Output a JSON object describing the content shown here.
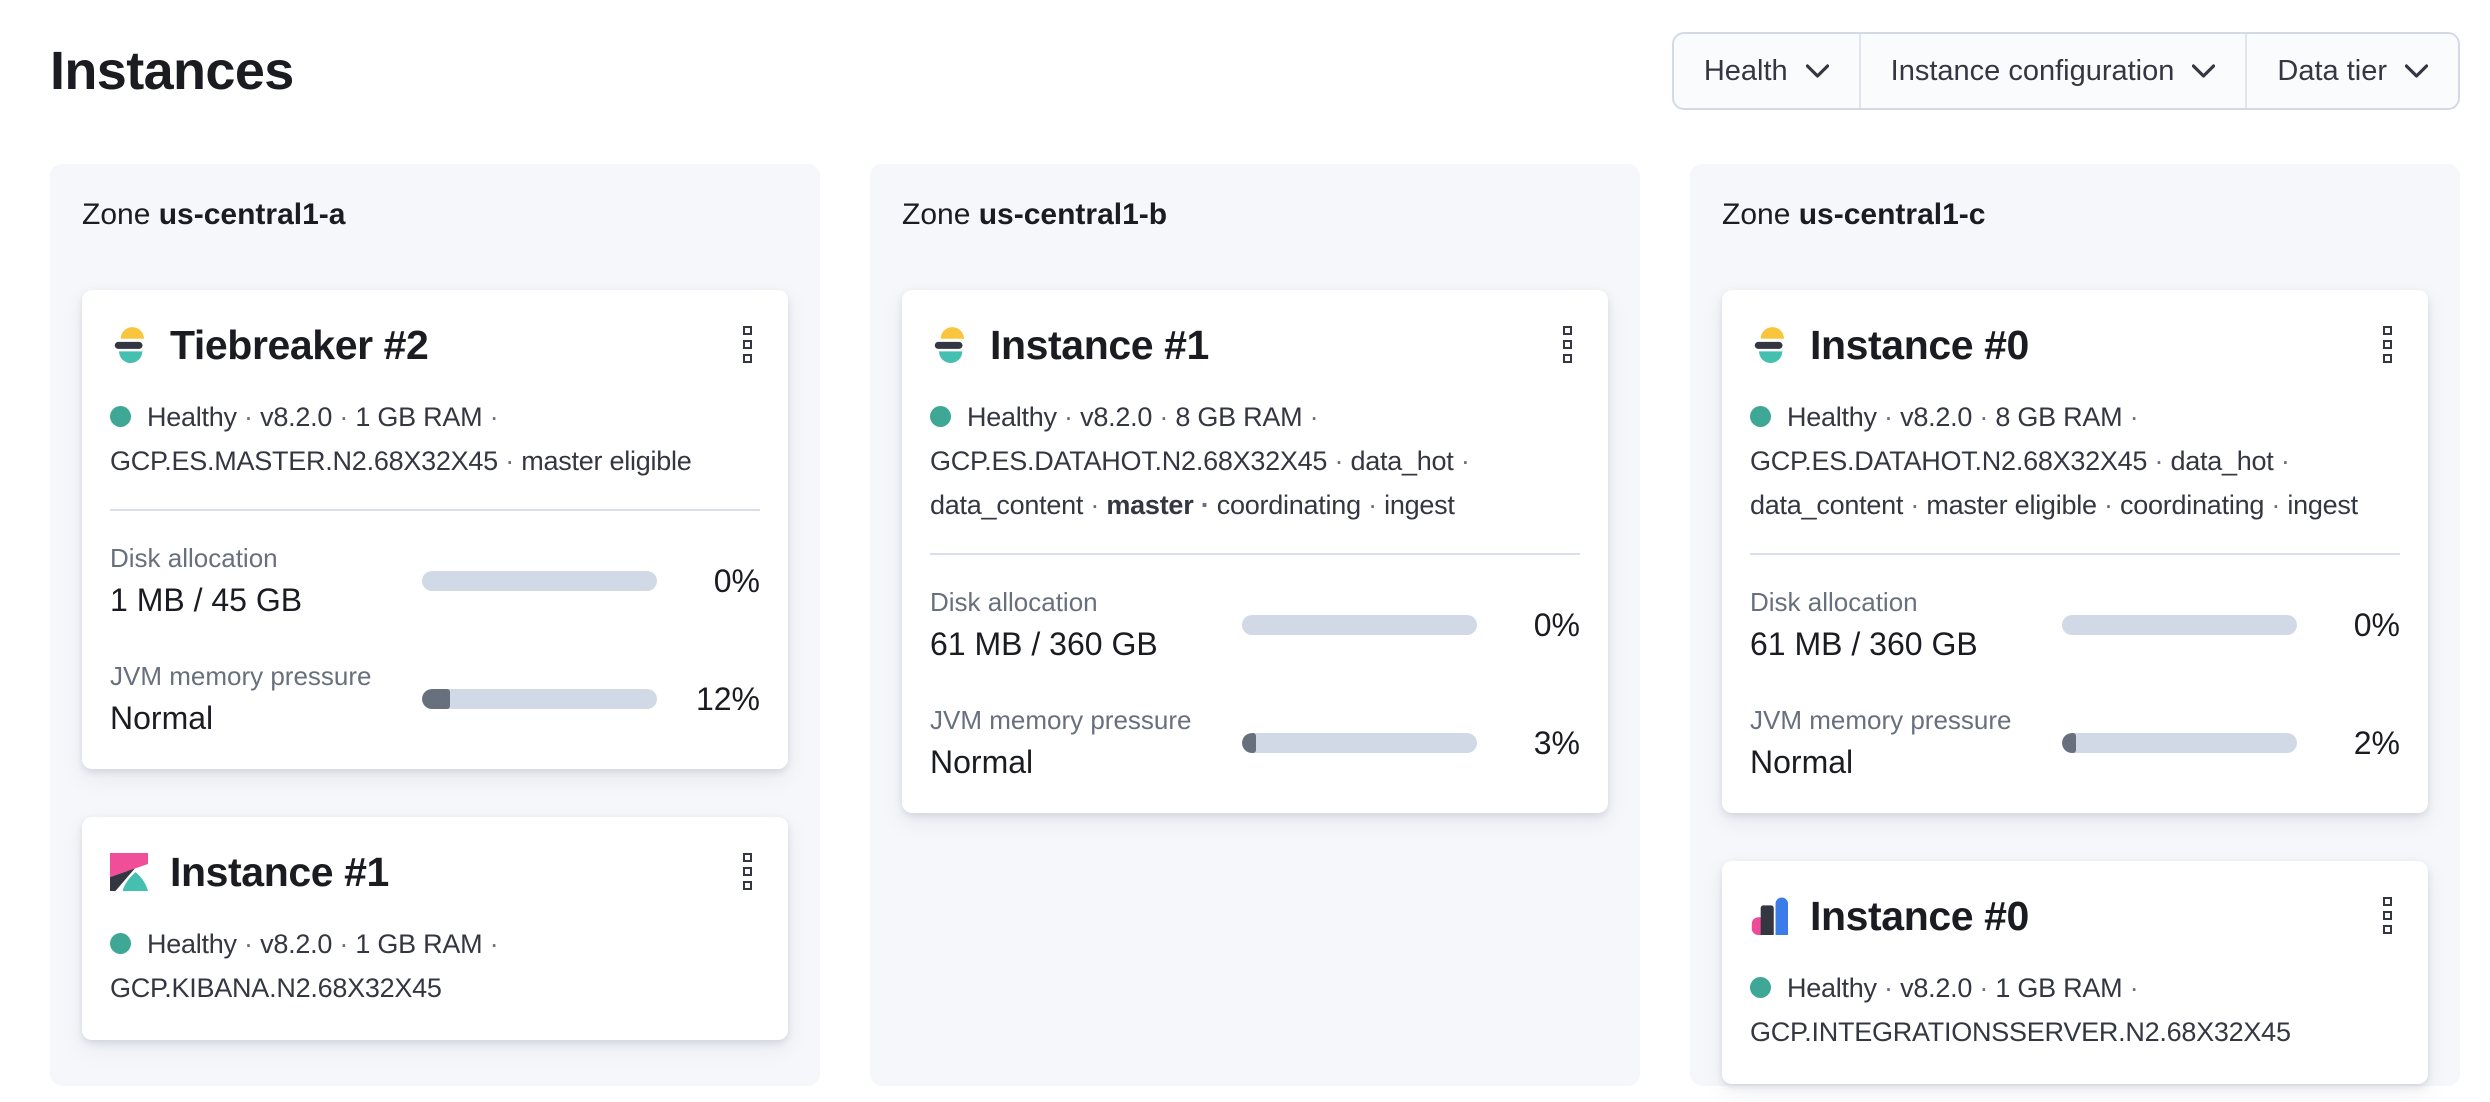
{
  "page": {
    "title": "Instances"
  },
  "filters": [
    {
      "label": "Health"
    },
    {
      "label": "Instance configuration"
    },
    {
      "label": "Data tier"
    }
  ],
  "zone_prefix": "Zone",
  "zones": [
    {
      "name": "us-central1-a",
      "instances": [
        {
          "icon": "elasticsearch",
          "title": "Tiebreaker #2",
          "tags": [
            {
              "text": "Healthy"
            },
            {
              "text": "v8.2.0"
            },
            {
              "text": "1 GB RAM"
            },
            {
              "text": "GCP.ES.MASTER.N2.68X32X45"
            },
            {
              "text": "master eligible"
            }
          ],
          "metrics": [
            {
              "label": "Disk allocation",
              "value": "1 MB / 45 GB",
              "percent": "0%",
              "fill": 0
            },
            {
              "label": "JVM memory pressure",
              "value": "Normal",
              "percent": "12%",
              "fill": 12
            }
          ]
        },
        {
          "icon": "kibana",
          "title": "Instance #1",
          "tags": [
            {
              "text": "Healthy"
            },
            {
              "text": "v8.2.0"
            },
            {
              "text": "1 GB RAM"
            },
            {
              "text": "GCP.KIBANA.N2.68X32X45"
            }
          ],
          "metrics": []
        }
      ]
    },
    {
      "name": "us-central1-b",
      "instances": [
        {
          "icon": "elasticsearch",
          "title": "Instance #1",
          "tags": [
            {
              "text": "Healthy"
            },
            {
              "text": "v8.2.0"
            },
            {
              "text": "8 GB RAM"
            },
            {
              "text": "GCP.ES.DATAHOT.N2.68X32X45"
            },
            {
              "text": "data_hot"
            },
            {
              "text": "data_content"
            },
            {
              "text": "master",
              "bold": true
            },
            {
              "text": "coordinating"
            },
            {
              "text": "ingest"
            }
          ],
          "metrics": [
            {
              "label": "Disk allocation",
              "value": "61 MB / 360 GB",
              "percent": "0%",
              "fill": 0
            },
            {
              "label": "JVM memory pressure",
              "value": "Normal",
              "percent": "3%",
              "fill": 3
            }
          ]
        }
      ]
    },
    {
      "name": "us-central1-c",
      "instances": [
        {
          "icon": "elasticsearch",
          "title": "Instance #0",
          "tags": [
            {
              "text": "Healthy"
            },
            {
              "text": "v8.2.0"
            },
            {
              "text": "8 GB RAM"
            },
            {
              "text": "GCP.ES.DATAHOT.N2.68X32X45"
            },
            {
              "text": "data_hot"
            },
            {
              "text": "data_content"
            },
            {
              "text": "master eligible"
            },
            {
              "text": "coordinating"
            },
            {
              "text": "ingest"
            }
          ],
          "metrics": [
            {
              "label": "Disk allocation",
              "value": "61 MB / 360 GB",
              "percent": "0%",
              "fill": 0
            },
            {
              "label": "JVM memory pressure",
              "value": "Normal",
              "percent": "2%",
              "fill": 2
            }
          ]
        },
        {
          "icon": "integrations_server",
          "title": "Instance #0",
          "tags": [
            {
              "text": "Healthy"
            },
            {
              "text": "v8.2.0"
            },
            {
              "text": "1 GB RAM"
            },
            {
              "text": "GCP.INTEGRATIONSSERVER.N2.68X32X45"
            }
          ],
          "metrics": []
        }
      ]
    }
  ],
  "colors": {
    "health_dot": "#3EA795",
    "bar_track": "#D1D9E6",
    "bar_fill": "#69707D",
    "logos": {
      "elasticsearch": [
        "#F9C53C",
        "#343741",
        "#45BFB0"
      ],
      "kibana": [
        "#F04E98",
        "#343741",
        "#45BFB0"
      ],
      "integrations_server": [
        "#EC4C9A",
        "#343741",
        "#3B7CE9"
      ]
    }
  }
}
